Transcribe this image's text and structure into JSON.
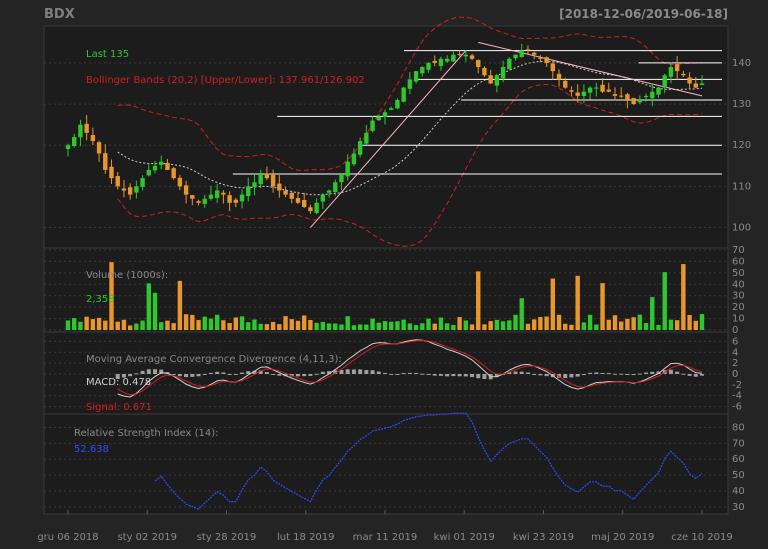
{
  "header": {
    "symbol": "BDX",
    "date_range": "[2018-12-06/2019-06-18]"
  },
  "colors": {
    "background": "#242424",
    "panel": "#1c1c1c",
    "grid": "#3a3a3a",
    "up": "#2ec82e",
    "down": "#e8962e",
    "band": "#d41f1f",
    "sma": "#cfcfcf",
    "rsi": "#2a4cff",
    "signal": "#d41f1f",
    "macd_hist": "#a0a0a0",
    "hline": "#ffffff",
    "trend": "#ffb6c1"
  },
  "chart_data": {
    "type": "candlestick-panels",
    "x_tick_labels": [
      "gru 06 2018",
      "sty 02 2019",
      "sty 28 2019",
      "lut 18 2019",
      "mar 11 2019",
      "kwi 01 2019",
      "kwi 23 2019",
      "maj 20 2019",
      "cze 10 2019"
    ],
    "price": {
      "last_label": "Last 135",
      "bollinger_label": "Bollinger Bands (20,2) [Upper/Lower]: 137.961/126.902",
      "y_ticks": [
        100,
        110,
        120,
        130,
        140
      ],
      "ylim": [
        96,
        148
      ],
      "support_resistance": [
        113,
        120,
        127,
        131,
        136,
        140,
        143
      ],
      "closes": [
        120,
        122,
        125,
        123,
        121,
        118,
        114,
        112,
        110,
        109,
        108,
        110,
        112,
        114,
        115,
        116,
        114,
        112,
        110,
        108,
        107,
        106,
        107,
        108,
        109,
        108,
        106,
        106,
        108,
        110,
        111,
        113,
        112,
        110,
        109,
        108,
        107,
        106,
        105,
        104,
        106,
        108,
        109,
        111,
        113,
        116,
        118,
        121,
        123,
        126,
        127,
        128,
        129,
        131,
        134,
        136,
        138,
        139,
        140,
        140,
        141,
        141,
        142,
        142,
        142,
        141,
        139,
        137,
        135,
        137,
        139,
        141,
        142,
        143,
        143,
        142,
        141,
        140,
        138,
        136,
        134,
        133,
        132,
        133,
        134,
        134,
        133,
        133,
        132,
        132,
        131,
        130,
        131,
        132,
        133,
        134,
        137,
        139,
        138,
        137,
        135,
        134,
        135
      ]
    },
    "volume": {
      "label": "Volume (1000s):",
      "last_value": "2,358",
      "y_ticks": [
        0,
        10,
        20,
        30,
        40,
        50,
        60,
        70
      ],
      "ylim": [
        0,
        70
      ]
    },
    "macd": {
      "label": "Moving Average Convergence Divergence (4,11,3):",
      "macd_label": "MACD: 0.478",
      "signal_label": "Signal: 0.671",
      "y_ticks": [
        -6,
        -4,
        -2,
        0,
        2,
        4,
        6
      ],
      "ylim": [
        -7,
        7
      ]
    },
    "rsi": {
      "label": "Relative Strength Index (14):",
      "value_label": "52.638",
      "y_ticks": [
        30,
        40,
        50,
        60,
        70,
        80
      ],
      "ylim": [
        28,
        86
      ]
    }
  }
}
